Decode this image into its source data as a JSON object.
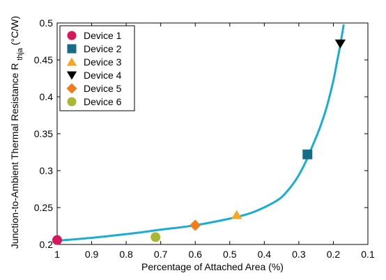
{
  "chart_data": {
    "type": "scatter",
    "xlabel": "Percentage of Attached Area (%)",
    "ylabel_main": "Junction-to-Ambient Thermal Resistance R",
    "ylabel_sub": "thja",
    "ylabel_unit": " (°C/W)",
    "xlim": [
      1.0,
      0.1
    ],
    "ylim": [
      0.2,
      0.5
    ],
    "x_axis_reversed": true,
    "x_ticks": [
      1,
      0.9,
      0.8,
      0.7,
      0.6,
      0.5,
      0.4,
      0.3,
      0.2,
      0.1
    ],
    "x_tick_labels": [
      "1",
      "0.9",
      "0.8",
      "0.7",
      "0.6",
      "0.5",
      "0.4",
      "0.3",
      "0.2",
      "0.1"
    ],
    "y_ticks": [
      0.2,
      0.25,
      0.3,
      0.35,
      0.4,
      0.45,
      0.5
    ],
    "y_tick_labels": [
      "0.2",
      "0.25",
      "0.3",
      "0.35",
      "0.4",
      "0.45",
      "0.5"
    ],
    "grid": false,
    "legend_position": "top-left",
    "series": [
      {
        "name": "Device 1",
        "marker": "circle",
        "color": "#d6175c",
        "x": 1.0,
        "y": 0.206
      },
      {
        "name": "Device 2",
        "marker": "square",
        "color": "#176b87",
        "x": 0.275,
        "y": 0.322
      },
      {
        "name": "Device 3",
        "marker": "triangle-up",
        "color": "#f5a623",
        "x": 0.48,
        "y": 0.24
      },
      {
        "name": "Device 4",
        "marker": "triangle-down",
        "color": "#000000",
        "x": 0.18,
        "y": 0.472
      },
      {
        "name": "Device 5",
        "marker": "diamond",
        "color": "#f07c1e",
        "x": 0.6,
        "y": 0.226
      },
      {
        "name": "Device 6",
        "marker": "circle",
        "color": "#a8b832",
        "x": 0.715,
        "y": 0.21
      }
    ],
    "curve": {
      "color": "#18aed4",
      "x": [
        1.0,
        0.9,
        0.8,
        0.7,
        0.6,
        0.5,
        0.45,
        0.42,
        0.38,
        0.35,
        0.32,
        0.3,
        0.28,
        0.26,
        0.24,
        0.22,
        0.2,
        0.19,
        0.18,
        0.17
      ],
      "y": [
        0.205,
        0.209,
        0.214,
        0.22,
        0.226,
        0.235,
        0.241,
        0.246,
        0.255,
        0.264,
        0.28,
        0.294,
        0.312,
        0.334,
        0.357,
        0.385,
        0.422,
        0.446,
        0.47,
        0.498
      ]
    }
  }
}
